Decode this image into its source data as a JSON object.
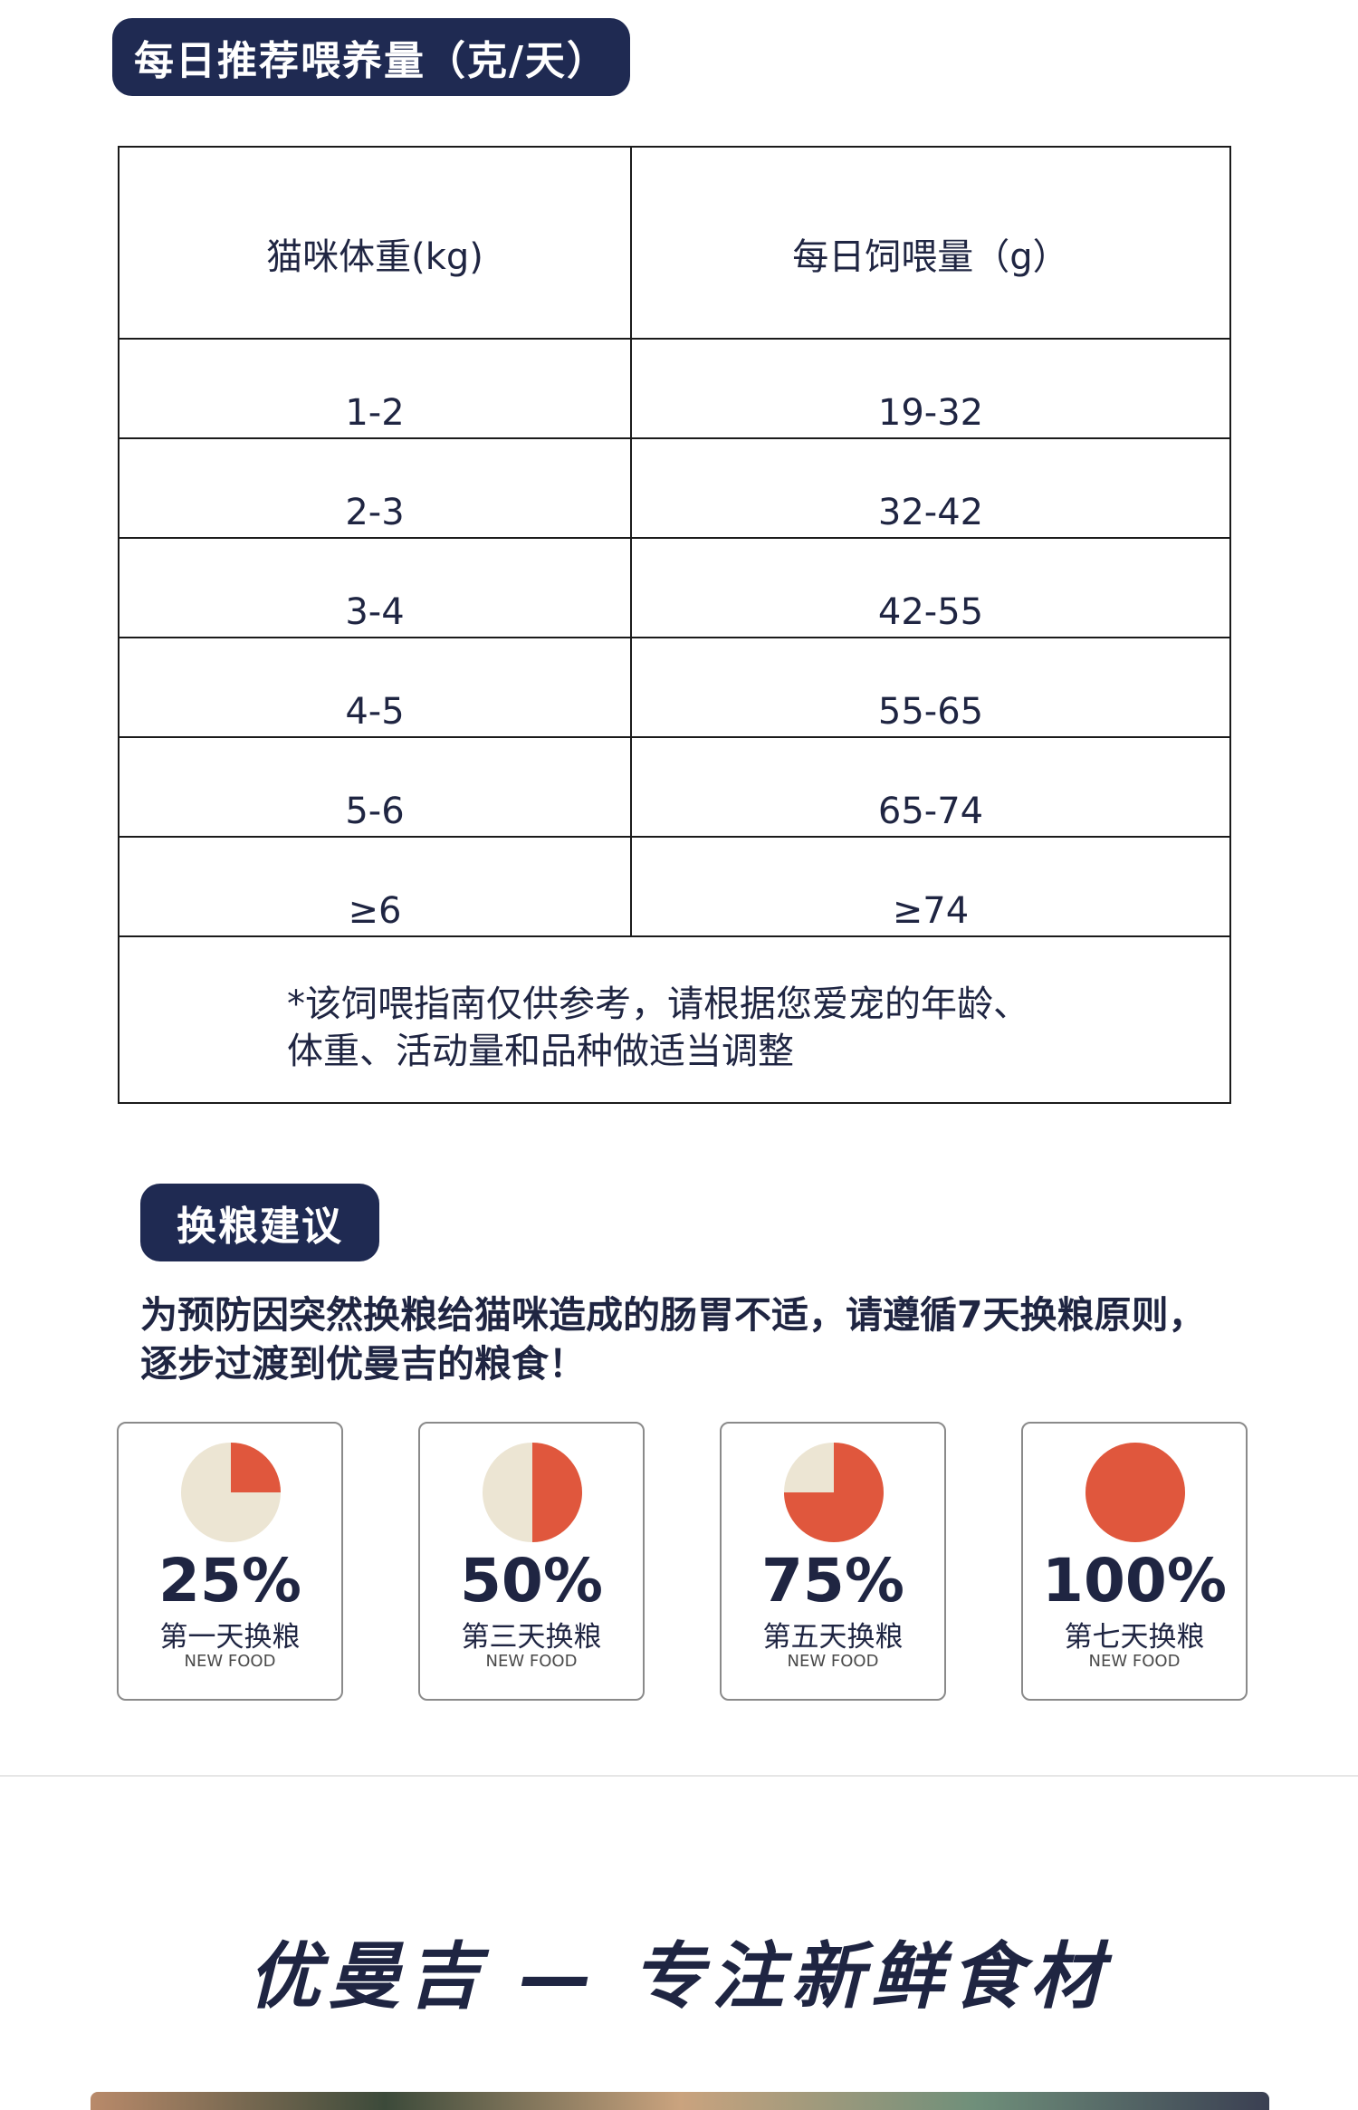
{
  "feeding": {
    "title": "每日推荐喂养量（克/天）",
    "table": {
      "headers": [
        "猫咪体重(kg)",
        "每日饲喂量（g）"
      ],
      "rows": [
        [
          "1-2",
          "19-32"
        ],
        [
          "2-3",
          "32-42"
        ],
        [
          "3-4",
          "42-55"
        ],
        [
          "4-5",
          "55-65"
        ],
        [
          "5-6",
          "65-74"
        ],
        [
          "≥6",
          "≥74"
        ]
      ],
      "note_line1": "*该饲喂指南仅供参考，请根据您爱宠的年龄、",
      "note_line2": "体重、活动量和品种做适当调整"
    }
  },
  "switching": {
    "title": "换粮建议",
    "intro_line1": "为预防因突然换粮给猫咪造成的肠胃不适，请遵循7天换粮原则，",
    "intro_line2": "逐步过渡到优曼吉的粮食！",
    "stages": [
      {
        "percent": "25%",
        "fraction": 0.25,
        "day": "第一天换粮",
        "sub": "NEW FOOD"
      },
      {
        "percent": "50%",
        "fraction": 0.5,
        "day": "第三天换粮",
        "sub": "NEW FOOD"
      },
      {
        "percent": "75%",
        "fraction": 0.75,
        "day": "第五天换粮",
        "sub": "NEW FOOD"
      },
      {
        "percent": "100%",
        "fraction": 1.0,
        "day": "第七天换粮",
        "sub": "NEW FOOD"
      }
    ],
    "colors": {
      "new_food": "#e0573d",
      "old_food": "#ece5d3"
    }
  },
  "brand": {
    "slogan": "优曼吉 — 专注新鲜食材"
  }
}
